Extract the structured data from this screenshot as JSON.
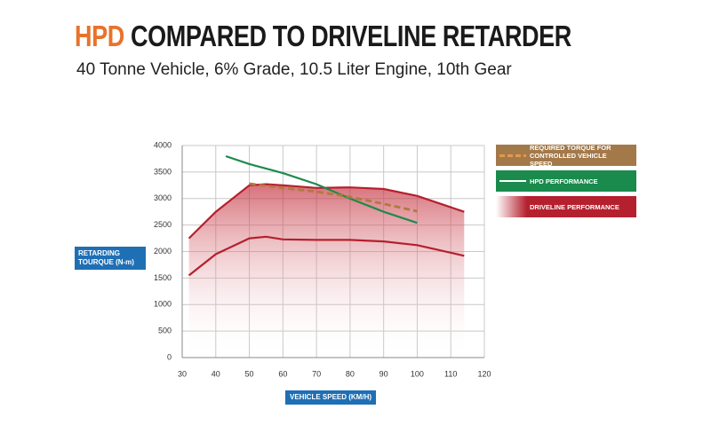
{
  "chart_data": {
    "type": "line",
    "title_highlight": "HPD",
    "title": "COMPARED TO DRIVELINE RETARDER",
    "subtitle": "40 Tonne Vehicle, 6% Grade, 10.5 Liter Engine, 10th Gear",
    "x_label": "VEHICLE SPEED (KM/H)",
    "y_label": "RETARDING TOURQUE (N-m)",
    "xlim": [
      30,
      120
    ],
    "xticks": [
      30,
      40,
      50,
      60,
      70,
      80,
      90,
      100,
      110,
      120
    ],
    "ylim": [
      0,
      4000
    ],
    "yticks": [
      0,
      500,
      1000,
      1500,
      2000,
      2500,
      3000,
      3500,
      4000
    ],
    "grid": true,
    "series": [
      {
        "name": "REQUIRED TORQUE FOR CONTROLLED VEHICLE SPEED",
        "color": "#b07a3c",
        "style": "dashed",
        "x": [
          50,
          60,
          70,
          80,
          90,
          100
        ],
        "values": [
          3280,
          3200,
          3130,
          3030,
          2900,
          2760
        ]
      },
      {
        "name": "HPD PERFORMANCE",
        "color": "#1f8a4c",
        "style": "solid",
        "x": [
          43,
          50,
          60,
          70,
          80,
          90,
          100
        ],
        "values": [
          3800,
          3650,
          3480,
          3270,
          3000,
          2750,
          2540
        ]
      },
      {
        "name": "DRIVELINE PERFORMANCE",
        "color": "#b5202e",
        "style": "band",
        "x": [
          32,
          40,
          50,
          55,
          60,
          70,
          80,
          90,
          100,
          114
        ],
        "values": [
          2250,
          2750,
          3250,
          3270,
          3250,
          3200,
          3210,
          3180,
          3050,
          2750
        ],
        "values_low": [
          1550,
          1950,
          2250,
          2280,
          2230,
          2220,
          2220,
          2190,
          2120,
          1920
        ]
      }
    ]
  }
}
